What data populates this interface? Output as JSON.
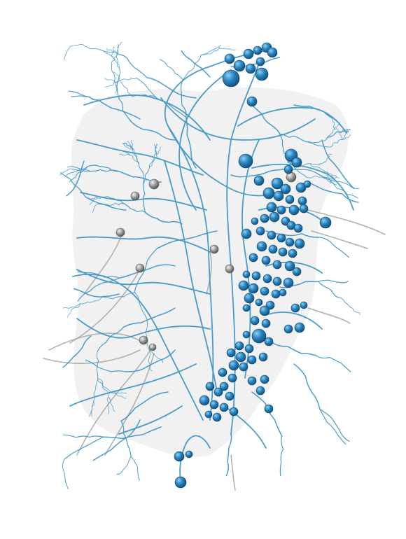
{
  "scene": {
    "background_color": "#ffffff",
    "neuropil_color": "#e6e6e6",
    "neuron_color": "#2b8cc4",
    "soma_color": "#1f77b4",
    "soma_highlight": "#8fd0f5",
    "secondary_neuron_color": "#aaaaaa",
    "secondary_soma_color": "#8c8c8c",
    "secondary_soma_highlight": "#f2f2f2"
  }
}
